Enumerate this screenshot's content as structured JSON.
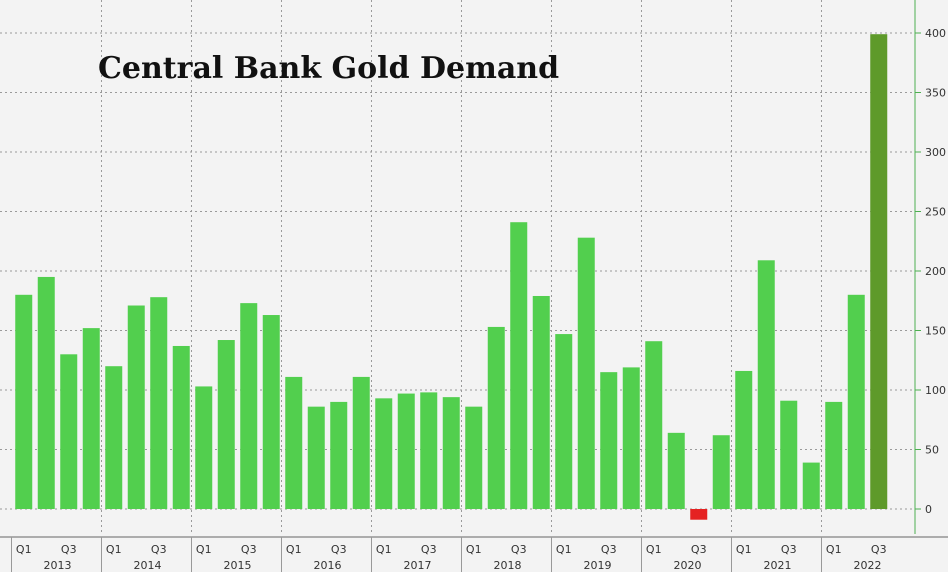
{
  "chart_data": {
    "type": "bar",
    "title": "Central Bank Gold Demand",
    "xlabel": "",
    "ylabel": "",
    "ylim": [
      -10,
      420
    ],
    "yticks": [
      0,
      50,
      100,
      150,
      200,
      250,
      300,
      350,
      400
    ],
    "grid": true,
    "legend": "none",
    "categories": [
      "Q1 2013",
      "Q2 2013",
      "Q3 2013",
      "Q4 2013",
      "Q1 2014",
      "Q2 2014",
      "Q3 2014",
      "Q4 2014",
      "Q1 2015",
      "Q2 2015",
      "Q3 2015",
      "Q4 2015",
      "Q1 2016",
      "Q2 2016",
      "Q3 2016",
      "Q4 2016",
      "Q1 2017",
      "Q2 2017",
      "Q3 2017",
      "Q4 2017",
      "Q1 2018",
      "Q2 2018",
      "Q3 2018",
      "Q4 2018",
      "Q1 2019",
      "Q2 2019",
      "Q3 2019",
      "Q4 2019",
      "Q1 2020",
      "Q2 2020",
      "Q3 2020",
      "Q4 2020",
      "Q1 2021",
      "Q2 2021",
      "Q3 2021",
      "Q4 2021",
      "Q1 2022",
      "Q2 2022",
      "Q3 2022"
    ],
    "values": [
      180,
      195,
      130,
      152,
      120,
      171,
      178,
      137,
      103,
      142,
      173,
      163,
      111,
      86,
      90,
      111,
      93,
      97,
      98,
      94,
      86,
      153,
      241,
      179,
      147,
      228,
      115,
      119,
      141,
      64,
      -9,
      62,
      116,
      209,
      91,
      39,
      90,
      180,
      399
    ],
    "x_quarter_labels": [
      "Q1",
      "Q3"
    ],
    "x_year_labels": [
      "2013",
      "2014",
      "2015",
      "2016",
      "2017",
      "2018",
      "2019",
      "2020",
      "2021",
      "2022"
    ],
    "colors": {
      "positive": "#52cf4e",
      "negative": "#e52222",
      "highlight": "#5e9a2a",
      "axis_tick": "#4caf50"
    }
  }
}
